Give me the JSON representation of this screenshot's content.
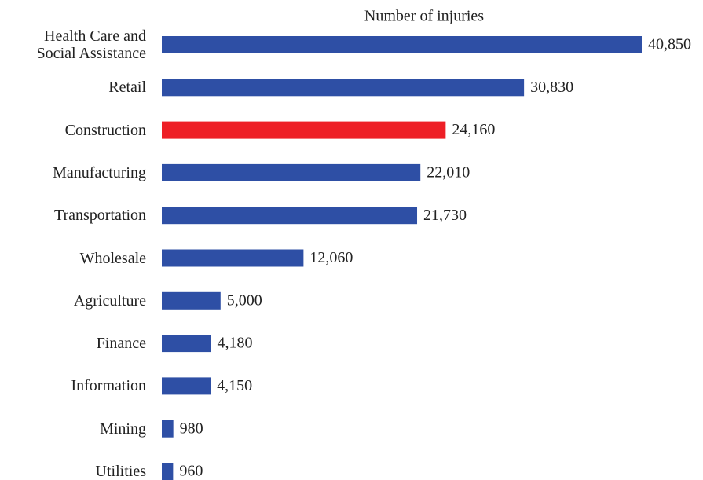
{
  "chart_data": {
    "type": "bar",
    "orientation": "horizontal",
    "title": "Number of injuries",
    "categories": [
      "Health Care and\nSocial Assistance",
      "Retail",
      "Construction",
      "Manufacturing",
      "Transportation",
      "Wholesale",
      "Agriculture",
      "Finance",
      "Information",
      "Mining",
      "Utilities"
    ],
    "values": [
      40850,
      30830,
      24160,
      22010,
      21730,
      12060,
      5000,
      4180,
      4150,
      980,
      960
    ],
    "value_labels": [
      "40,850",
      "30,830",
      "24,160",
      "22,010",
      "21,730",
      "12,060",
      "5,000",
      "4,180",
      "4,150",
      "980",
      "960"
    ],
    "colors": [
      "#2e4fa5",
      "#2e4fa5",
      "#ee1f26",
      "#2e4fa5",
      "#2e4fa5",
      "#2e4fa5",
      "#2e4fa5",
      "#2e4fa5",
      "#2e4fa5",
      "#2e4fa5",
      "#2e4fa5"
    ]
  }
}
